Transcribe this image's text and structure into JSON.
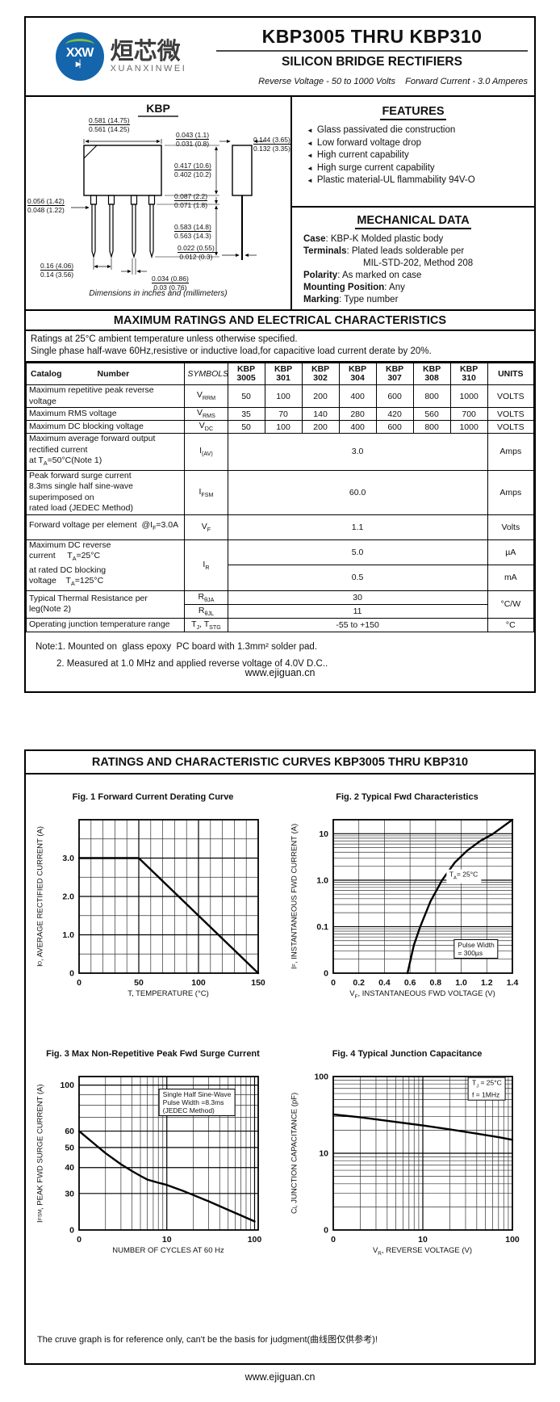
{
  "page1": {
    "logo": {
      "monogram": "XXW",
      "diode": "▶▏",
      "cn": "烜芯微",
      "en": "XUANXINWEI"
    },
    "title": "KBP3005 THRU KBP310",
    "subtitle": "SILICON BRIDGE RECTIFIERS",
    "tagline": "Reverse Voltage - 50 to 1000 Volts    Forward Current - 3.0 Amperes",
    "package": {
      "name": "KBP",
      "caption": "Dimensions in inches and (millimeters)",
      "dims": [
        {
          "top": "0.581 (14.75)",
          "bot": "0.561 (14.25)"
        },
        {
          "top": "0.043 (1.1)",
          "bot": "0.031 (0.8)"
        },
        {
          "top": "0.144 (3.65)",
          "bot": "0.132 (3.35)"
        },
        {
          "top": "0.417 (10.6)",
          "bot": "0.402 (10.2)"
        },
        {
          "top": "0.087 (2.2)",
          "bot": "0.071 (1.8)"
        },
        {
          "top": "0.056 (1.42)",
          "bot": "0.048 (1.22)"
        },
        {
          "top": "0.583 (14.8)",
          "bot": "0.563 (14.3)"
        },
        {
          "top": "0.022 (0.55)",
          "bot": "0.012 (0.3)"
        },
        {
          "top": "0.16 (4.06)",
          "bot": "0.14 (3.56)"
        },
        {
          "top": "0.034 (0.86)",
          "bot": "0.03 (0.76)"
        }
      ]
    },
    "features": {
      "heading": "FEATURES",
      "items": [
        "Glass passivated die construction",
        "Low forward voltage drop",
        "High current capability",
        "High  surge current capability",
        "Plastic material-UL flammability 94V-O"
      ]
    },
    "mechanical": {
      "heading": "MECHANICAL DATA",
      "lines": [
        {
          "label": "Case",
          "text": ": KBP-K Molded plastic body",
          "indent": false
        },
        {
          "label": "Terminals",
          "text": ": Plated leads solderable per",
          "indent": false
        },
        {
          "label": "",
          "text": "MIL-STD-202, Method 208",
          "indent": true
        },
        {
          "label": "Polarity",
          "text": ": As marked on case",
          "indent": false
        },
        {
          "label": "Mounting Position",
          "text": ": Any",
          "indent": false
        },
        {
          "label": "Marking",
          "text": ": Type number",
          "indent": false
        }
      ]
    },
    "ratings": {
      "title": "MAXIMUM RATINGS AND ELECTRICAL CHARACTERISTICS",
      "note1": "Ratings at 25°C ambient temperature unless otherwise specified.",
      "note2": "Single phase half-wave 60Hz,resistive or inductive load,for capacitive load current derate by 20%."
    },
    "table": {
      "catalog": "Catalog",
      "number": "Number",
      "symbols_h": "SYMBOLS",
      "units_h": "UNITS",
      "parts": [
        [
          "KBP",
          "3005"
        ],
        [
          "KBP",
          "301"
        ],
        [
          "KBP",
          "302"
        ],
        [
          "KBP",
          "304"
        ],
        [
          "KBP",
          "307"
        ],
        [
          "KBP",
          "308"
        ],
        [
          "KBP",
          "310"
        ]
      ],
      "rows": [
        {
          "name": [
            "Maximum repetitive peak reverse voltage"
          ],
          "sym": "V|RRM",
          "vals": [
            "50",
            "100",
            "200",
            "400",
            "600",
            "800",
            "1000"
          ],
          "unit": "VOLTS"
        },
        {
          "name": [
            "Maximum RMS voltage"
          ],
          "sym": "V|RMS",
          "vals": [
            "35",
            "70",
            "140",
            "280",
            "420",
            "560",
            "700"
          ],
          "unit": "VOLTS"
        },
        {
          "name": [
            "Maximum DC blocking voltage"
          ],
          "sym": "V|DC",
          "vals": [
            "50",
            "100",
            "200",
            "400",
            "600",
            "800",
            "1000"
          ],
          "unit": "VOLTS"
        },
        {
          "name": [
            "Maximum average forward output rectified current",
            "at T|A|=50°C(Note 1)"
          ],
          "sym": "I|(AV)",
          "span": "3.0",
          "unit": "Amps"
        },
        {
          "name": [
            "Peak forward surge current",
            "8.3ms single half sine-wave superimposed on",
            "rated load (JEDEC Method)"
          ],
          "sym": "I|FSM",
          "span": "60.0",
          "unit": "Amps"
        },
        {
          "name": [
            "Forward voltage per element  @I|F|=3.0A"
          ],
          "sym": "V|F",
          "span": "1.1",
          "unit": "Volts"
        },
        {
          "name": [
            "Maximum DC reverse current     T|A|=25°C",
            "at rated DC blocking voltage    T|A|=125°C"
          ],
          "sym": "I|R",
          "sub": [
            [
              "5.0",
              "µA"
            ],
            [
              "0.5",
              "mA"
            ]
          ]
        },
        {
          "name": [
            "Typical Thermal Resistance per leg(Note 2)"
          ],
          "syms2": [
            [
              "R|θJA",
              "30"
            ],
            [
              "R|θJL",
              "11"
            ]
          ],
          "unit": "°C/W"
        },
        {
          "name": [
            "Operating junction temperature range"
          ],
          "sym": "T|J|, T|STG",
          "span": "-55 to +150",
          "unit": "°C"
        }
      ]
    },
    "notes": [
      "Note:1. Mounted on  glass epoxy  PC board with 1.3mm² solder pad.",
      "2. Measured at 1.0 MHz and applied reverse voltage of 4.0V D.C.."
    ],
    "footer": "www.ejiguan.cn"
  },
  "page2": {
    "title": "RATINGS AND CHARACTERISTIC CURVES KBP3005 THRU KBP310",
    "disclaimer": "The cruve graph is for reference only, can't be the basis for judgment(曲线图仅供参考)!",
    "footer": "www.ejiguan.cn"
  },
  "chart_data": [
    {
      "type": "line",
      "fig": "Fig. 1 Forward Current Derating Curve",
      "xlabel": "T, TEMPERATURE (°C)",
      "ylabel": "I|O|, AVERAGE RECTIFIED CURRENT (A)",
      "xscale": "linear",
      "yscale": "linear",
      "xlim": [
        0,
        150
      ],
      "ylim": [
        0,
        4
      ],
      "xgrid": [
        10,
        20,
        30,
        40,
        60,
        70,
        80,
        90,
        110,
        120,
        130,
        140
      ],
      "xmajor": [
        50,
        100
      ],
      "ygrid": [
        0.5,
        1.5,
        2.5,
        3.5
      ],
      "ymajor": [
        1,
        2,
        3
      ],
      "xticks": [
        [
          0,
          "0"
        ],
        [
          50,
          "50"
        ],
        [
          100,
          "100"
        ],
        [
          150,
          "150"
        ]
      ],
      "yticks": [
        [
          0,
          "0"
        ],
        [
          1,
          "1.0"
        ],
        [
          2,
          "2.0"
        ],
        [
          3,
          "3.0"
        ]
      ],
      "series": [
        {
          "name": "derating",
          "points": [
            [
              0,
              3
            ],
            [
              50,
              3
            ],
            [
              150,
              0
            ]
          ]
        }
      ],
      "annotations": []
    },
    {
      "type": "line",
      "fig": "Fig. 2 Typical Fwd Characteristics",
      "xlabel": "V|F|, INSTANTANEOUS FWD VOLTAGE (V)",
      "ylabel": "I|F|, INSTANTANEOUS FWD CURRENT (A)",
      "xscale": "linear",
      "yscale": "log",
      "xlim": [
        0,
        1.4
      ],
      "ylim": [
        0.01,
        20
      ],
      "xgrid": [
        0.2,
        0.4,
        0.6,
        0.8,
        1.0,
        1.2
      ],
      "xmajor": [],
      "ygrid": [
        0.02,
        0.03,
        0.04,
        0.05,
        0.06,
        0.07,
        0.08,
        0.09,
        0.2,
        0.3,
        0.4,
        0.5,
        0.6,
        0.7,
        0.8,
        0.9,
        2,
        3,
        4,
        5,
        6,
        7,
        8,
        9
      ],
      "ymajor": [
        0.1,
        1,
        10
      ],
      "xticks": [
        [
          0,
          "0"
        ],
        [
          0.2,
          "0.2"
        ],
        [
          0.4,
          "0.4"
        ],
        [
          0.6,
          "0.6"
        ],
        [
          0.8,
          "0.8"
        ],
        [
          1.0,
          "1.0"
        ],
        [
          1.2,
          "1.2"
        ],
        [
          1.4,
          "1.4"
        ]
      ],
      "yticks": [
        [
          0.01,
          "0"
        ],
        [
          0.1,
          "0.1"
        ],
        [
          1,
          "1.0"
        ],
        [
          10,
          "10"
        ]
      ],
      "series": [
        {
          "name": "vf-if",
          "points": [
            [
              0.58,
              0.01
            ],
            [
              0.63,
              0.04
            ],
            [
              0.68,
              0.1
            ],
            [
              0.76,
              0.35
            ],
            [
              0.85,
              1.0
            ],
            [
              0.95,
              2.4
            ],
            [
              1.05,
              4.4
            ],
            [
              1.15,
              7
            ],
            [
              1.25,
              10
            ],
            [
              1.4,
              20
            ]
          ]
        }
      ],
      "annotations": [
        {
          "text": "T|A|= 25°C",
          "fx": 0.73,
          "fy": 0.37,
          "boxed": false
        },
        {
          "text": "Pulse Width\n= 300µs",
          "fx": 0.8,
          "fy": 0.84,
          "boxed": true
        }
      ]
    },
    {
      "type": "line",
      "fig": "Fig. 3 Max Non-Repetitive Peak Fwd Surge Current",
      "xlabel": "NUMBER OF CYCLES AT 60 Hz",
      "ylabel": "I|FSM|, PEAK FWD SURGE CURRENT (A)",
      "xscale": "log",
      "yscale": "log",
      "xlim": [
        1,
        110
      ],
      "ylim": [
        20,
        110
      ],
      "xgrid": [
        2,
        3,
        4,
        5,
        6,
        7,
        8,
        9,
        20,
        30,
        40,
        50,
        60,
        70,
        80,
        90
      ],
      "xmajor": [
        10,
        100
      ],
      "ygrid": [
        70,
        80,
        90
      ],
      "ymajor": [
        30,
        40,
        50,
        60,
        100
      ],
      "xticks": [
        [
          1,
          "0"
        ],
        [
          10,
          "10"
        ],
        [
          100,
          "100"
        ]
      ],
      "yticks": [
        [
          20,
          "0"
        ],
        [
          30,
          "30"
        ],
        [
          40,
          "40"
        ],
        [
          50,
          "50"
        ],
        [
          60,
          "60"
        ],
        [
          100,
          "100"
        ]
      ],
      "series": [
        {
          "name": "surge",
          "points": [
            [
              1,
              60
            ],
            [
              1.5,
              52
            ],
            [
              2,
              47
            ],
            [
              3,
              41.5
            ],
            [
              4,
              38.5
            ],
            [
              5,
              36.5
            ],
            [
              6,
              35
            ],
            [
              8,
              33.8
            ],
            [
              10,
              33
            ],
            [
              15,
              31
            ],
            [
              20,
              29.5
            ],
            [
              30,
              27.5
            ],
            [
              50,
              25
            ],
            [
              70,
              23.5
            ],
            [
              100,
              22
            ]
          ]
        }
      ],
      "annotations": [
        {
          "text": "Single Half Sine-Wave\nPulse Width =8.3ms\n(JEDEC Method)",
          "fx": 0.66,
          "fy": 0.17,
          "boxed": true
        }
      ]
    },
    {
      "type": "line",
      "fig": "Fig. 4 Typical Junction Capacitance",
      "xlabel": "V|R|, REVERSE VOLTAGE (V)",
      "ylabel": "C|j|, JUNCTION CAPACITANCE (pF)",
      "xscale": "log",
      "yscale": "log",
      "xlim": [
        1,
        100
      ],
      "ylim": [
        1,
        100
      ],
      "xgrid": [
        2,
        3,
        4,
        5,
        6,
        7,
        8,
        9,
        20,
        30,
        40,
        50,
        60,
        70,
        80,
        90
      ],
      "xmajor": [
        10
      ],
      "ygrid": [
        2,
        3,
        4,
        5,
        6,
        7,
        8,
        9,
        20,
        30,
        40,
        50,
        60,
        70,
        80,
        90
      ],
      "ymajor": [
        10
      ],
      "xticks": [
        [
          1,
          "0"
        ],
        [
          10,
          "10"
        ],
        [
          100,
          "100"
        ]
      ],
      "yticks": [
        [
          1,
          "0"
        ],
        [
          10,
          "10"
        ],
        [
          100,
          "100"
        ]
      ],
      "series": [
        {
          "name": "cj",
          "points": [
            [
              1,
              32
            ],
            [
              2,
              29.5
            ],
            [
              4,
              26.5
            ],
            [
              10,
              23
            ],
            [
              20,
              20.5
            ],
            [
              40,
              18
            ],
            [
              70,
              16.2
            ],
            [
              100,
              15
            ]
          ]
        }
      ],
      "annotations": [
        {
          "text": "T|J| = 25°C\nf =  1MHz",
          "fx": 0.86,
          "fy": 0.08,
          "boxed": true
        }
      ]
    }
  ]
}
